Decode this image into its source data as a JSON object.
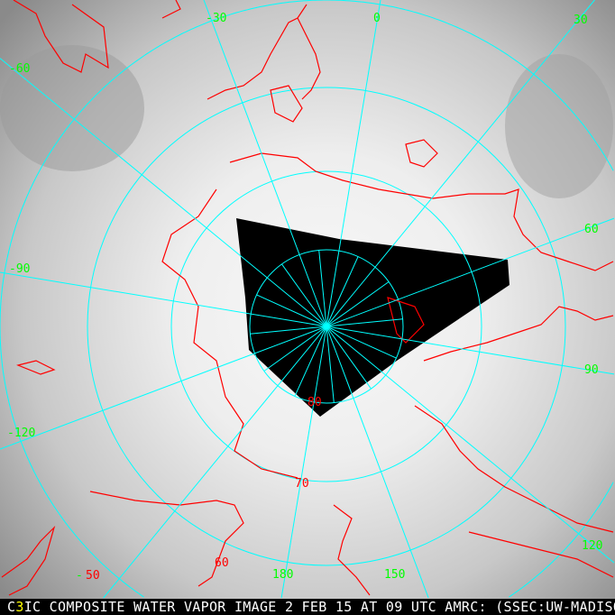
{
  "caption": {
    "prefix": "C",
    "channel": "3",
    "text": "IC COMPOSITE WATER VAPOR IMAGE 2 FEB 15 AT 09 UTC AMRC: (SSEC:UW-MADISON)"
  },
  "longitude_labels": [
    "-30",
    "0",
    "30",
    "60",
    "90",
    "120",
    "150",
    "180",
    "-120",
    "-90",
    "-60",
    "-"
  ],
  "latitude_labels": [
    "50",
    "60",
    "70",
    "80"
  ],
  "colors": {
    "grid": "#00ffff",
    "coastline": "#ff0000",
    "longitude_label": "#00ff00",
    "latitude_label": "#ff0000",
    "no_data": "#000000"
  }
}
